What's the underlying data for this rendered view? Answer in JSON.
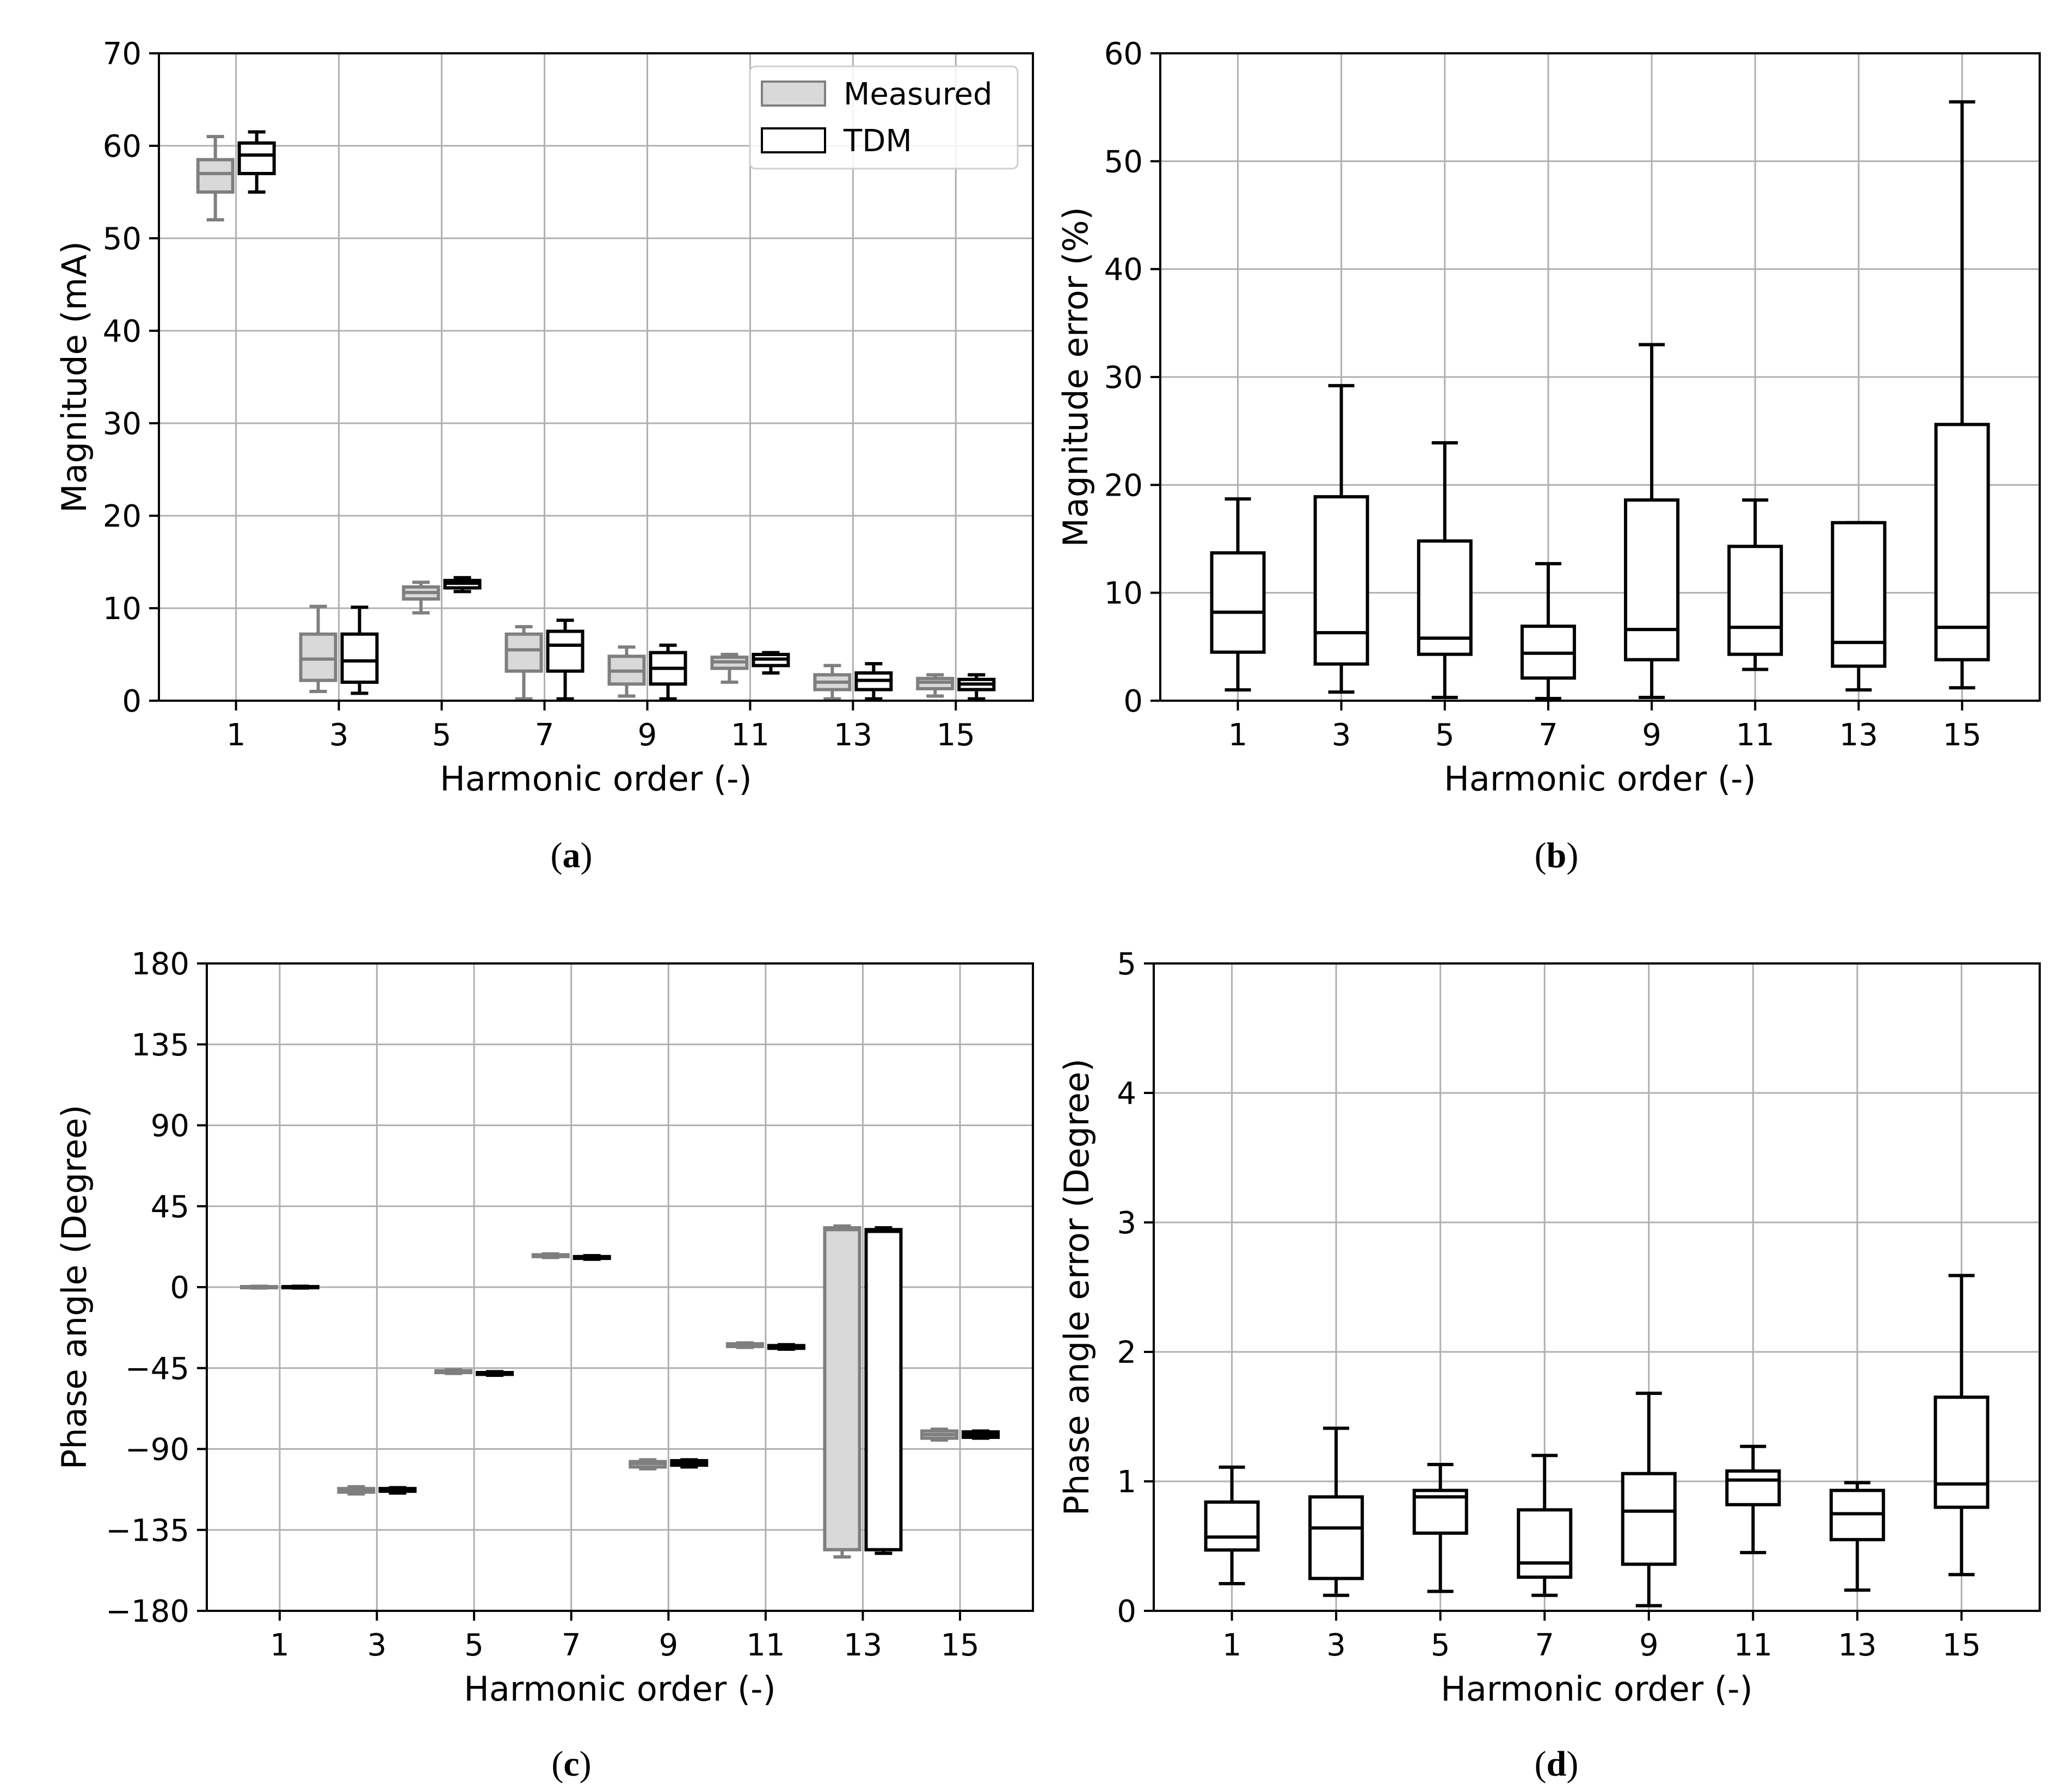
{
  "colors": {
    "measured_fill": "#d9d9d9",
    "measured_stroke": "#7f7f7f",
    "tdm_fill": "#ffffff",
    "tdm_stroke": "#000000",
    "grid": "#b0b0b0"
  },
  "captions": [
    {
      "open": "(",
      "letter": "a",
      "close": ")"
    },
    {
      "open": "(",
      "letter": "b",
      "close": ")"
    },
    {
      "open": "(",
      "letter": "c",
      "close": ")"
    },
    {
      "open": "(",
      "letter": "d",
      "close": ")"
    }
  ],
  "chart_data": [
    {
      "type": "box",
      "title": "",
      "xlabel": "Harmonic order (-)",
      "ylabel": "Magnitude (mA)",
      "categories": [
        "1",
        "3",
        "5",
        "7",
        "9",
        "11",
        "13",
        "15"
      ],
      "ylim": [
        0,
        70
      ],
      "yticks": [
        "0",
        "10",
        "20",
        "30",
        "40",
        "50",
        "60",
        "70"
      ],
      "ytick_values": [
        0,
        10,
        20,
        30,
        40,
        50,
        60,
        70
      ],
      "grid": true,
      "legend": {
        "position": "top-right",
        "entries": [
          "Measured",
          "TDM"
        ]
      },
      "series": [
        {
          "name": "Measured",
          "boxes": [
            {
              "min": 52,
              "q1": 55,
              "median": 57,
              "q3": 58.5,
              "max": 61
            },
            {
              "min": 1,
              "q1": 2.2,
              "median": 4.5,
              "q3": 7.2,
              "max": 10.2
            },
            {
              "min": 9.5,
              "q1": 11,
              "median": 11.7,
              "q3": 12.3,
              "max": 12.8
            },
            {
              "min": 0.2,
              "q1": 3.2,
              "median": 5.5,
              "q3": 7.2,
              "max": 8
            },
            {
              "min": 0.5,
              "q1": 1.8,
              "median": 3.2,
              "q3": 4.8,
              "max": 5.8
            },
            {
              "min": 2,
              "q1": 3.5,
              "median": 4.2,
              "q3": 4.7,
              "max": 5
            },
            {
              "min": 0.2,
              "q1": 1.2,
              "median": 2,
              "q3": 2.8,
              "max": 3.8
            },
            {
              "min": 0.5,
              "q1": 1.3,
              "median": 2,
              "q3": 2.4,
              "max": 2.8
            }
          ]
        },
        {
          "name": "TDM",
          "boxes": [
            {
              "min": 55,
              "q1": 57,
              "median": 59,
              "q3": 60.3,
              "max": 61.5
            },
            {
              "min": 0.8,
              "q1": 2,
              "median": 4.3,
              "q3": 7.2,
              "max": 10.1
            },
            {
              "min": 11.8,
              "q1": 12.2,
              "median": 12.7,
              "q3": 13,
              "max": 13.3
            },
            {
              "min": 0.2,
              "q1": 3.2,
              "median": 6,
              "q3": 7.5,
              "max": 8.7
            },
            {
              "min": 0.2,
              "q1": 1.8,
              "median": 3.5,
              "q3": 5.2,
              "max": 6
            },
            {
              "min": 3,
              "q1": 3.8,
              "median": 4.5,
              "q3": 5,
              "max": 5.2
            },
            {
              "min": 0.2,
              "q1": 1.2,
              "median": 2.2,
              "q3": 3,
              "max": 4
            },
            {
              "min": 0.2,
              "q1": 1.2,
              "median": 1.8,
              "q3": 2.3,
              "max": 2.8
            }
          ]
        }
      ]
    },
    {
      "type": "box",
      "title": "",
      "xlabel": "Harmonic order (-)",
      "ylabel": "Magnitude error (%)",
      "categories": [
        "1",
        "3",
        "5",
        "7",
        "9",
        "11",
        "13",
        "15"
      ],
      "ylim": [
        0,
        60
      ],
      "yticks": [
        "0",
        "10",
        "20",
        "30",
        "40",
        "50",
        "60"
      ],
      "ytick_values": [
        0,
        10,
        20,
        30,
        40,
        50,
        60
      ],
      "grid": true,
      "series": [
        {
          "name": "Error",
          "boxes": [
            {
              "min": 1,
              "q1": 4.5,
              "median": 8.2,
              "q3": 13.7,
              "max": 18.7
            },
            {
              "min": 0.8,
              "q1": 3.4,
              "median": 6.3,
              "q3": 18.9,
              "max": 29.2
            },
            {
              "min": 0.3,
              "q1": 4.3,
              "median": 5.8,
              "q3": 14.8,
              "max": 23.9
            },
            {
              "min": 0.2,
              "q1": 2.1,
              "median": 4.4,
              "q3": 6.9,
              "max": 12.7
            },
            {
              "min": 0.3,
              "q1": 3.8,
              "median": 6.6,
              "q3": 18.6,
              "max": 33
            },
            {
              "min": 2.9,
              "q1": 4.3,
              "median": 6.8,
              "q3": 14.3,
              "max": 18.6
            },
            {
              "min": 1,
              "q1": 3.2,
              "median": 5.4,
              "q3": 16.5,
              "max": 16.5
            },
            {
              "min": 1.2,
              "q1": 3.8,
              "median": 6.8,
              "q3": 25.6,
              "max": 55.5
            }
          ]
        }
      ]
    },
    {
      "type": "box",
      "title": "",
      "xlabel": "Harmonic order (-)",
      "ylabel": "Phase angle (Degree)",
      "categories": [
        "1",
        "3",
        "5",
        "7",
        "9",
        "11",
        "13",
        "15"
      ],
      "ylim": [
        -180,
        180
      ],
      "yticks": [
        "−180",
        "−135",
        "−90",
        "−45",
        "0",
        "45",
        "90",
        "135",
        "180"
      ],
      "ytick_values": [
        -180,
        -135,
        -90,
        -45,
        0,
        45,
        90,
        135,
        180
      ],
      "grid": true,
      "series": [
        {
          "name": "Measured",
          "boxes": [
            {
              "min": -0.5,
              "q1": -0.3,
              "median": 0,
              "q3": 0.3,
              "max": 0.5
            },
            {
              "min": -115,
              "q1": -114,
              "median": -113,
              "q3": -112,
              "max": -111
            },
            {
              "min": -48,
              "q1": -47.5,
              "median": -47,
              "q3": -46.5,
              "max": -46
            },
            {
              "min": 16.5,
              "q1": 17,
              "median": 17.5,
              "q3": 18,
              "max": 18.5
            },
            {
              "min": -101,
              "q1": -100,
              "median": -98,
              "q3": -97,
              "max": -96
            },
            {
              "min": -33.5,
              "q1": -33,
              "median": -32,
              "q3": -31.5,
              "max": -31
            },
            {
              "min": -150,
              "q1": -146,
              "median": 32,
              "q3": 33,
              "max": 34
            },
            {
              "min": -85,
              "q1": -84,
              "median": -82,
              "q3": -80,
              "max": -79
            }
          ]
        },
        {
          "name": "TDM",
          "boxes": [
            {
              "min": -0.5,
              "q1": -0.3,
              "median": 0,
              "q3": 0.3,
              "max": 0.5
            },
            {
              "min": -114.5,
              "q1": -113.5,
              "median": -113,
              "q3": -112,
              "max": -111.5
            },
            {
              "min": -49,
              "q1": -48.5,
              "median": -48,
              "q3": -47.5,
              "max": -47
            },
            {
              "min": 15.5,
              "q1": 16,
              "median": 16.5,
              "q3": 17,
              "max": 17.5
            },
            {
              "min": -100,
              "q1": -99,
              "median": -97.5,
              "q3": -96.5,
              "max": -96
            },
            {
              "min": -34.5,
              "q1": -34,
              "median": -33,
              "q3": -32.5,
              "max": -32
            },
            {
              "min": -148,
              "q1": -146,
              "median": 31,
              "q3": 32,
              "max": 33
            },
            {
              "min": -84,
              "q1": -83.5,
              "median": -82,
              "q3": -80.5,
              "max": -80
            }
          ]
        }
      ]
    },
    {
      "type": "box",
      "title": "",
      "xlabel": "Harmonic order (-)",
      "ylabel": "Phase angle error (Degree)",
      "categories": [
        "1",
        "3",
        "5",
        "7",
        "9",
        "11",
        "13",
        "15"
      ],
      "ylim": [
        0,
        5
      ],
      "yticks": [
        "0",
        "1",
        "2",
        "3",
        "4",
        "5"
      ],
      "ytick_values": [
        0,
        1,
        2,
        3,
        4,
        5
      ],
      "grid": true,
      "series": [
        {
          "name": "Error",
          "boxes": [
            {
              "min": 0.21,
              "q1": 0.47,
              "median": 0.57,
              "q3": 0.84,
              "max": 1.11
            },
            {
              "min": 0.12,
              "q1": 0.25,
              "median": 0.64,
              "q3": 0.88,
              "max": 1.41
            },
            {
              "min": 0.15,
              "q1": 0.6,
              "median": 0.88,
              "q3": 0.93,
              "max": 1.13
            },
            {
              "min": 0.12,
              "q1": 0.26,
              "median": 0.37,
              "q3": 0.78,
              "max": 1.2
            },
            {
              "min": 0.04,
              "q1": 0.36,
              "median": 0.77,
              "q3": 1.06,
              "max": 1.68
            },
            {
              "min": 0.45,
              "q1": 0.82,
              "median": 1.01,
              "q3": 1.08,
              "max": 1.27
            },
            {
              "min": 0.16,
              "q1": 0.55,
              "median": 0.75,
              "q3": 0.93,
              "max": 0.99
            },
            {
              "min": 0.28,
              "q1": 0.8,
              "median": 0.98,
              "q3": 1.65,
              "max": 2.59
            }
          ]
        }
      ]
    }
  ]
}
